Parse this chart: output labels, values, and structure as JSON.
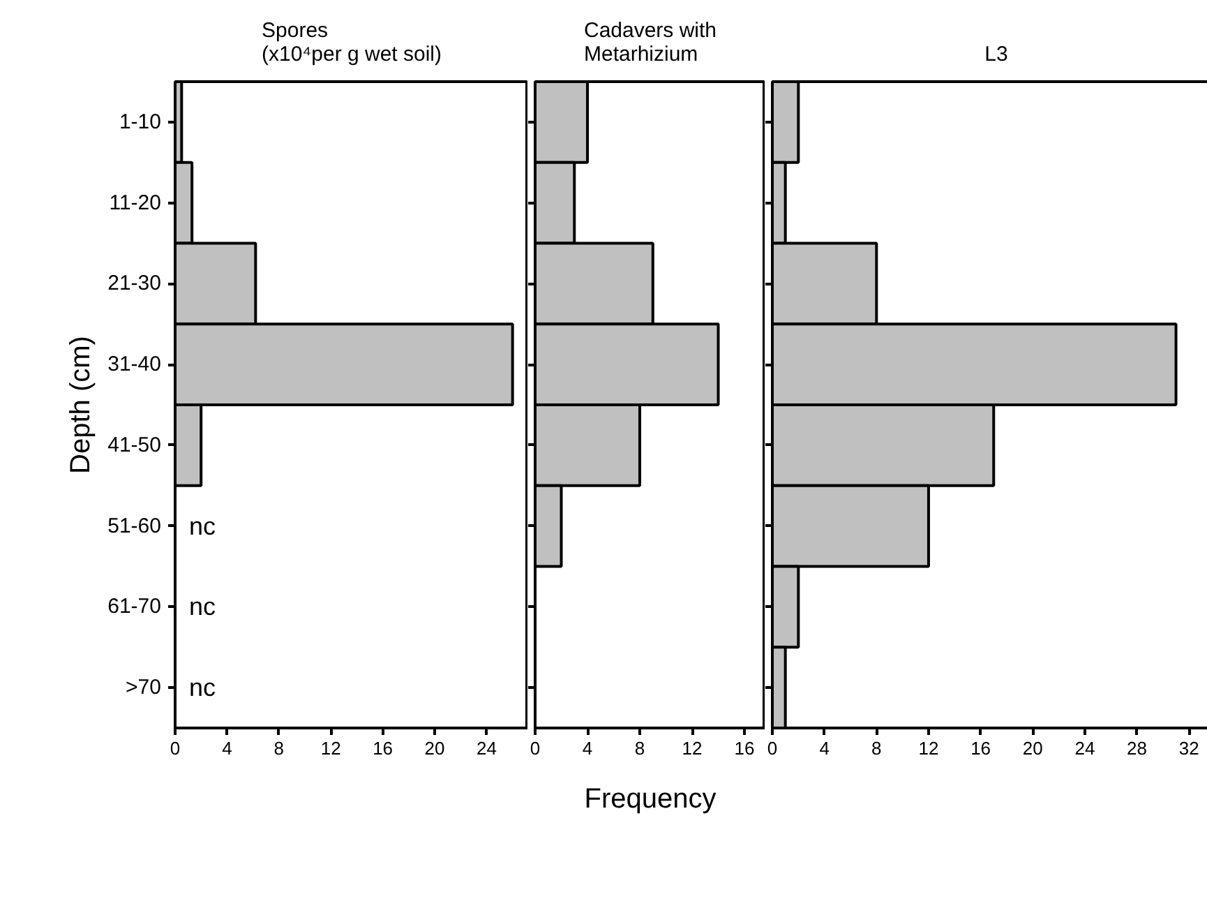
{
  "chart_data": [
    {
      "type": "bar",
      "orientation": "horizontal",
      "title": "Spores\n(x10⁴per g wet soil)",
      "ylabel": "Depth (cm)",
      "categories": [
        "1-10",
        "11-20",
        "21-30",
        "31-40",
        "41-50",
        "51-60",
        "61-70",
        ">70"
      ],
      "values": [
        0.5,
        1.3,
        6.2,
        26,
        2,
        null,
        null,
        null
      ],
      "color": "#c0c0c0",
      "xlim": [
        0,
        27.2
      ],
      "xticks": [
        0,
        4,
        8,
        12,
        16,
        20,
        24
      ],
      "annotations": [
        "nc",
        "nc",
        "nc"
      ]
    },
    {
      "type": "bar",
      "orientation": "horizontal",
      "title": "Cadavers with\nMetarhizium",
      "xlabel": "Frequency",
      "categories": [
        null,
        null,
        null,
        null,
        null,
        null,
        null,
        null
      ],
      "values": [
        4,
        3,
        9,
        14,
        8,
        2,
        null,
        null
      ],
      "color": "#c0c0c0",
      "xlim": [
        0,
        17.6
      ],
      "xticks": [
        0,
        4,
        8,
        12,
        16
      ],
      "tick_labels": "x"
    },
    {
      "type": "bar",
      "orientation": "horizontal",
      "title": "L3",
      "categories": [
        null,
        null,
        null,
        null,
        null,
        null,
        null,
        null
      ],
      "values": [
        2,
        1,
        8,
        31,
        17,
        12,
        2,
        1
      ],
      "color": "#c0c0c0",
      "xlim": [
        0,
        34.4
      ],
      "xticks": [
        0,
        4,
        8,
        12,
        16,
        20,
        24,
        28,
        32
      ],
      "tick_labels": "x"
    }
  ]
}
